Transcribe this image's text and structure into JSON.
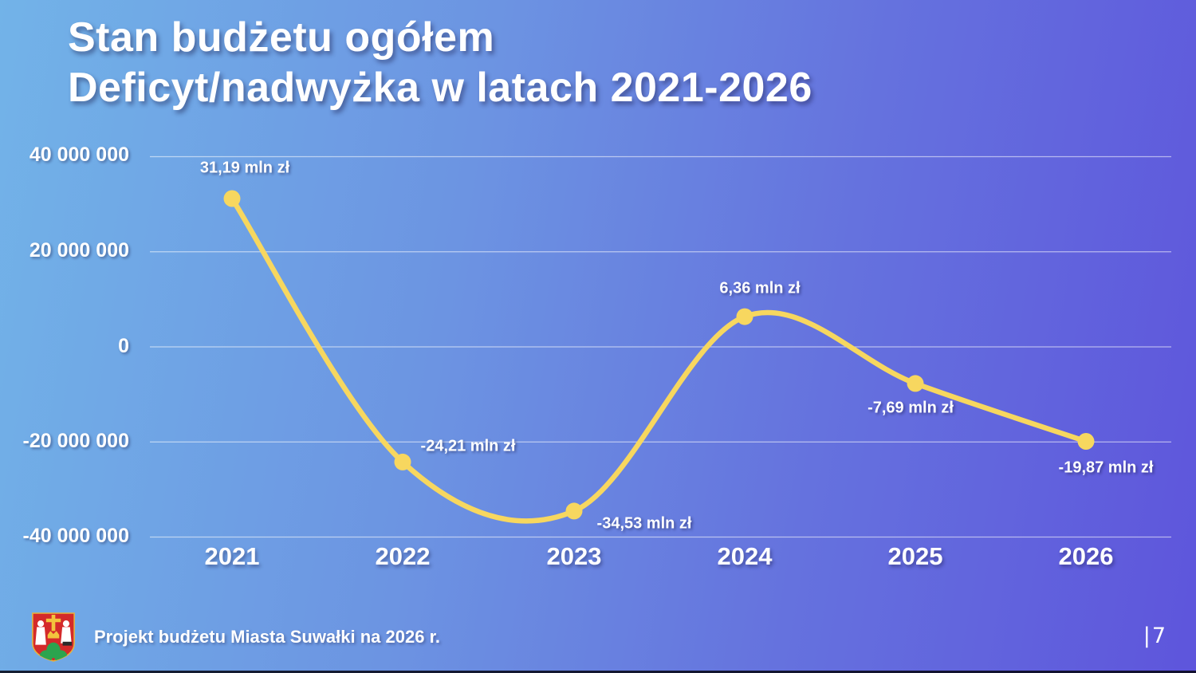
{
  "slide": {
    "title_line1": "Stan budżetu ogółem",
    "title_line2": "Deficyt/nadwyżka w latach 2021-2026",
    "footer_text": "Projekt budżetu Miasta Suwałki na 2026 r.",
    "page_number": "|7",
    "logo_name": "suwalki-coat-of-arms"
  },
  "colors": {
    "background_left": "#72b3e8",
    "background_right": "#5e55dc",
    "line": "#F7D75F",
    "marker": "#F7D75F",
    "gridline": "rgba(255,255,255,0.55)",
    "text": "#ffffff",
    "shield_red": "#d42a2a",
    "shield_gold": "#f2c43d",
    "shield_green": "#2ca44e"
  },
  "chart_data": {
    "type": "line",
    "title": "Deficyt/nadwyżka w latach 2021-2026",
    "categories": [
      "2021",
      "2022",
      "2023",
      "2024",
      "2025",
      "2026"
    ],
    "series": [
      {
        "name": "Deficyt/nadwyżka (zł)",
        "values": [
          31190000,
          -24210000,
          -34530000,
          6360000,
          -7690000,
          -19870000
        ]
      }
    ],
    "point_labels": [
      "31,19 mln zł",
      "-24,21 mln zł",
      "-34,53 mln zł",
      "6,36 mln zł",
      "-7,69 mln zł",
      "-19,87 mln zł"
    ],
    "y_ticks": [
      "40 000 000",
      "20 000 000",
      "0",
      "-20 000 000",
      "-40 000 000"
    ],
    "y_tick_values": [
      40000000,
      20000000,
      0,
      -20000000,
      -40000000
    ],
    "ylim": [
      -40000000,
      40000000
    ],
    "xlabel": "",
    "ylabel": "",
    "grid": true,
    "legend": false,
    "smooth": true,
    "line_color": "#F7D75F",
    "marker_color": "#F7D75F"
  }
}
